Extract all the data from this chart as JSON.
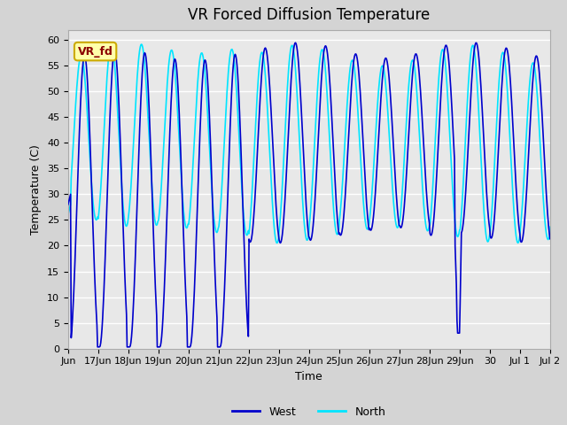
{
  "title": "VR Forced Diffusion Temperature",
  "xlabel": "Time",
  "ylabel": "Temperature (C)",
  "ylim": [
    0,
    62
  ],
  "yticks": [
    0,
    5,
    10,
    15,
    20,
    25,
    30,
    35,
    40,
    45,
    50,
    55,
    60
  ],
  "west_color": "#0000CC",
  "north_color": "#00E5FF",
  "legend_west": "West",
  "legend_north": "North",
  "annotation_text": "VR_fd",
  "annotation_bg": "#FFFFAA",
  "annotation_border": "#CCAA00",
  "annotation_text_color": "#8B0000",
  "fig_bg_color": "#D4D4D4",
  "plot_bg_color": "#E8E8E8",
  "grid_color": "#FFFFFF",
  "title_fontsize": 12,
  "label_fontsize": 9,
  "tick_fontsize": 8,
  "xtick_labels": [
    "Jun",
    "17Jun",
    "18Jun",
    "19Jun",
    "20Jun",
    "21Jun",
    "22Jun",
    "23Jun",
    "24Jun",
    "25Jun",
    "26Jun",
    "27Jun",
    "28Jun",
    "29Jun",
    "30",
    "Jul 1",
    "Jul 2"
  ],
  "west_lw": 1.2,
  "north_lw": 1.2
}
